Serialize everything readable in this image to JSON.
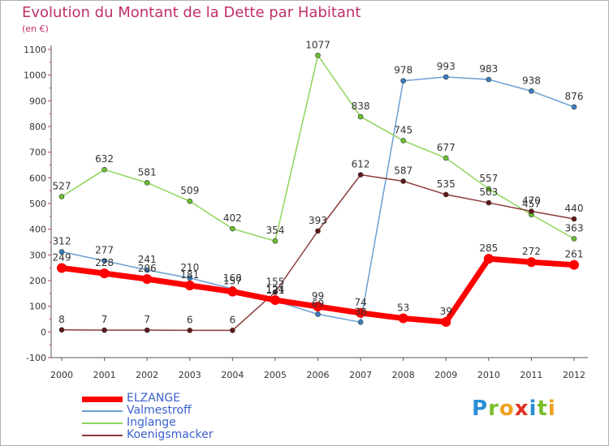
{
  "title": "Evolution du Montant de la Dette par Habitant",
  "subtitle": "(en €)",
  "logo": {
    "letters": [
      "P",
      "r",
      "o",
      "x",
      "i",
      "t",
      "i"
    ],
    "colors": [
      "#2a8fd6",
      "#7bbf2a",
      "#f0a020",
      "#e03020",
      "#2a8fd6",
      "#7bbf2a",
      "#f0a020"
    ]
  },
  "chart_data": {
    "type": "line",
    "x": [
      "2000",
      "2001",
      "2002",
      "2003",
      "2004",
      "2005",
      "2006",
      "2007",
      "2008",
      "2009",
      "2010",
      "2011",
      "2012"
    ],
    "yticks": [
      -100,
      0,
      100,
      200,
      300,
      400,
      500,
      600,
      700,
      800,
      900,
      1000,
      1100
    ],
    "ylim": [
      -100,
      1100
    ],
    "grid": false,
    "legend": "bottom-left",
    "series": [
      {
        "name": "ELZANGE",
        "color": "#ff0000",
        "marker": "#ff0000",
        "width": 7,
        "r": 6,
        "values": [
          249,
          228,
          206,
          181,
          157,
          124,
          99,
          74,
          53,
          39,
          285,
          272,
          261
        ],
        "labels": [
          "249",
          "228",
          "206",
          "181",
          "157",
          "124",
          "99",
          "74",
          "53",
          "39",
          "285",
          "272",
          "261"
        ]
      },
      {
        "name": "Valmestroff",
        "color": "#6a9fd4",
        "marker": "#3a7fc4",
        "width": 1.5,
        "r": 3,
        "values": [
          312,
          277,
          241,
          210,
          168,
          121,
          69,
          38,
          978,
          993,
          983,
          938,
          876
        ],
        "labels": [
          "312",
          "277",
          "241",
          "210",
          "168",
          "121",
          "69",
          "38",
          "978",
          "993",
          "983",
          "938",
          "876"
        ]
      },
      {
        "name": "Inglange",
        "color": "#8fd45a",
        "marker": "#6cc030",
        "width": 1.5,
        "r": 3,
        "values": [
          527,
          632,
          581,
          509,
          402,
          354,
          1077,
          838,
          745,
          677,
          557,
          457,
          363
        ],
        "labels": [
          "527",
          "632",
          "581",
          "509",
          "402",
          "354",
          "1077",
          "838",
          "745",
          "677",
          "557",
          "457",
          "363"
        ]
      },
      {
        "name": "Koenigsmacker",
        "color": "#8b3a3a",
        "marker": "#601818",
        "width": 1.5,
        "r": 3,
        "values": [
          8,
          7,
          7,
          6,
          6,
          155,
          393,
          612,
          587,
          535,
          503,
          470,
          440
        ],
        "labels": [
          "8",
          "7",
          "7",
          "6",
          "6",
          "155",
          "393",
          "612",
          "587",
          "535",
          "503",
          "470",
          "440"
        ]
      }
    ]
  }
}
